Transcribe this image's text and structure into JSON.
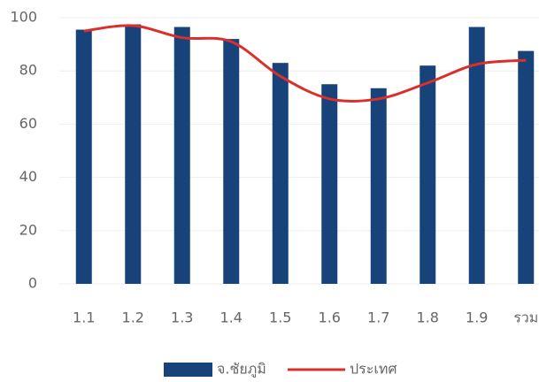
{
  "chart_data": {
    "type": "bar",
    "categories": [
      "1.1",
      "1.2",
      "1.3",
      "1.4",
      "1.5",
      "1.6",
      "1.7",
      "1.8",
      "1.9",
      "รวม"
    ],
    "series": [
      {
        "name": "จ.ชัยภูมิ",
        "type": "bar",
        "color": "#17427a",
        "values": [
          95.5,
          97.5,
          96.5,
          92,
          83,
          75,
          73.5,
          82,
          96.5,
          87.5
        ]
      },
      {
        "name": "ประเทศ",
        "type": "line",
        "color": "#d9302c",
        "values": [
          95,
          97,
          92.5,
          91,
          78,
          69.5,
          69.5,
          75.5,
          82.5,
          84
        ]
      }
    ],
    "ylim": [
      0,
      100
    ],
    "yticks": [
      0,
      20,
      40,
      60,
      80,
      100
    ],
    "grid": true,
    "legend": "bottom"
  }
}
